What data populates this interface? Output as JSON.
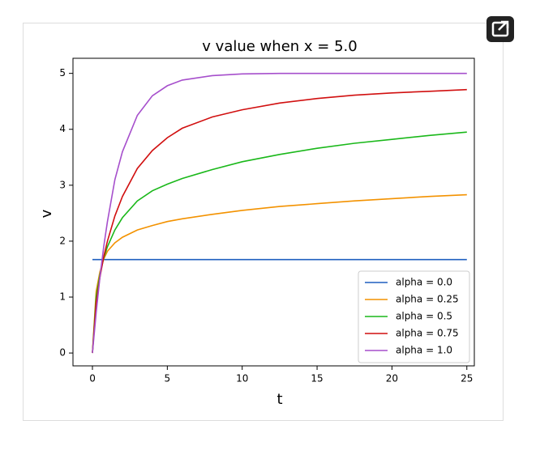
{
  "chart_data": {
    "type": "line",
    "title": "v value when x = 5.0",
    "xlabel": "t",
    "ylabel": "v",
    "x": [
      0,
      0.25,
      0.5,
      0.75,
      1,
      1.5,
      2,
      3,
      4,
      5,
      6,
      8,
      10,
      12.5,
      15,
      17.5,
      20,
      22.5,
      25
    ],
    "series": [
      {
        "name": "alpha = 0.0",
        "color": "#1f5fbf",
        "values": [
          1.67,
          1.67,
          1.67,
          1.67,
          1.67,
          1.67,
          1.67,
          1.67,
          1.67,
          1.67,
          1.67,
          1.67,
          1.67,
          1.67,
          1.67,
          1.67,
          1.67,
          1.67,
          1.67
        ]
      },
      {
        "name": "alpha = 0.25",
        "color": "#f39200",
        "values": [
          0,
          1.1,
          1.45,
          1.68,
          1.82,
          1.97,
          2.07,
          2.2,
          2.28,
          2.35,
          2.4,
          2.48,
          2.55,
          2.62,
          2.67,
          2.72,
          2.76,
          2.8,
          2.83
        ]
      },
      {
        "name": "alpha = 0.5",
        "color": "#1ab81a",
        "values": [
          0,
          1.0,
          1.4,
          1.7,
          1.9,
          2.2,
          2.42,
          2.72,
          2.9,
          3.02,
          3.12,
          3.28,
          3.42,
          3.55,
          3.66,
          3.75,
          3.82,
          3.89,
          3.95
        ]
      },
      {
        "name": "alpha = 0.75",
        "color": "#d10f0f",
        "values": [
          0,
          0.9,
          1.35,
          1.72,
          2.0,
          2.45,
          2.8,
          3.3,
          3.62,
          3.85,
          4.02,
          4.22,
          4.35,
          4.47,
          4.55,
          4.61,
          4.65,
          4.68,
          4.71
        ]
      },
      {
        "name": "alpha = 1.0",
        "color": "#a64fcc",
        "values": [
          0,
          0.72,
          1.35,
          1.9,
          2.35,
          3.1,
          3.6,
          4.25,
          4.6,
          4.78,
          4.88,
          4.96,
          4.99,
          5,
          5,
          5,
          5,
          5,
          5
        ]
      }
    ],
    "xlim": [
      -1.3,
      25.5
    ],
    "xticks": [
      0,
      5,
      10,
      15,
      20,
      25
    ],
    "ylim": [
      -0.23,
      5.27
    ],
    "yticks": [
      0,
      1,
      2,
      3,
      4,
      5
    ],
    "grid": false,
    "legend": "lower right"
  }
}
